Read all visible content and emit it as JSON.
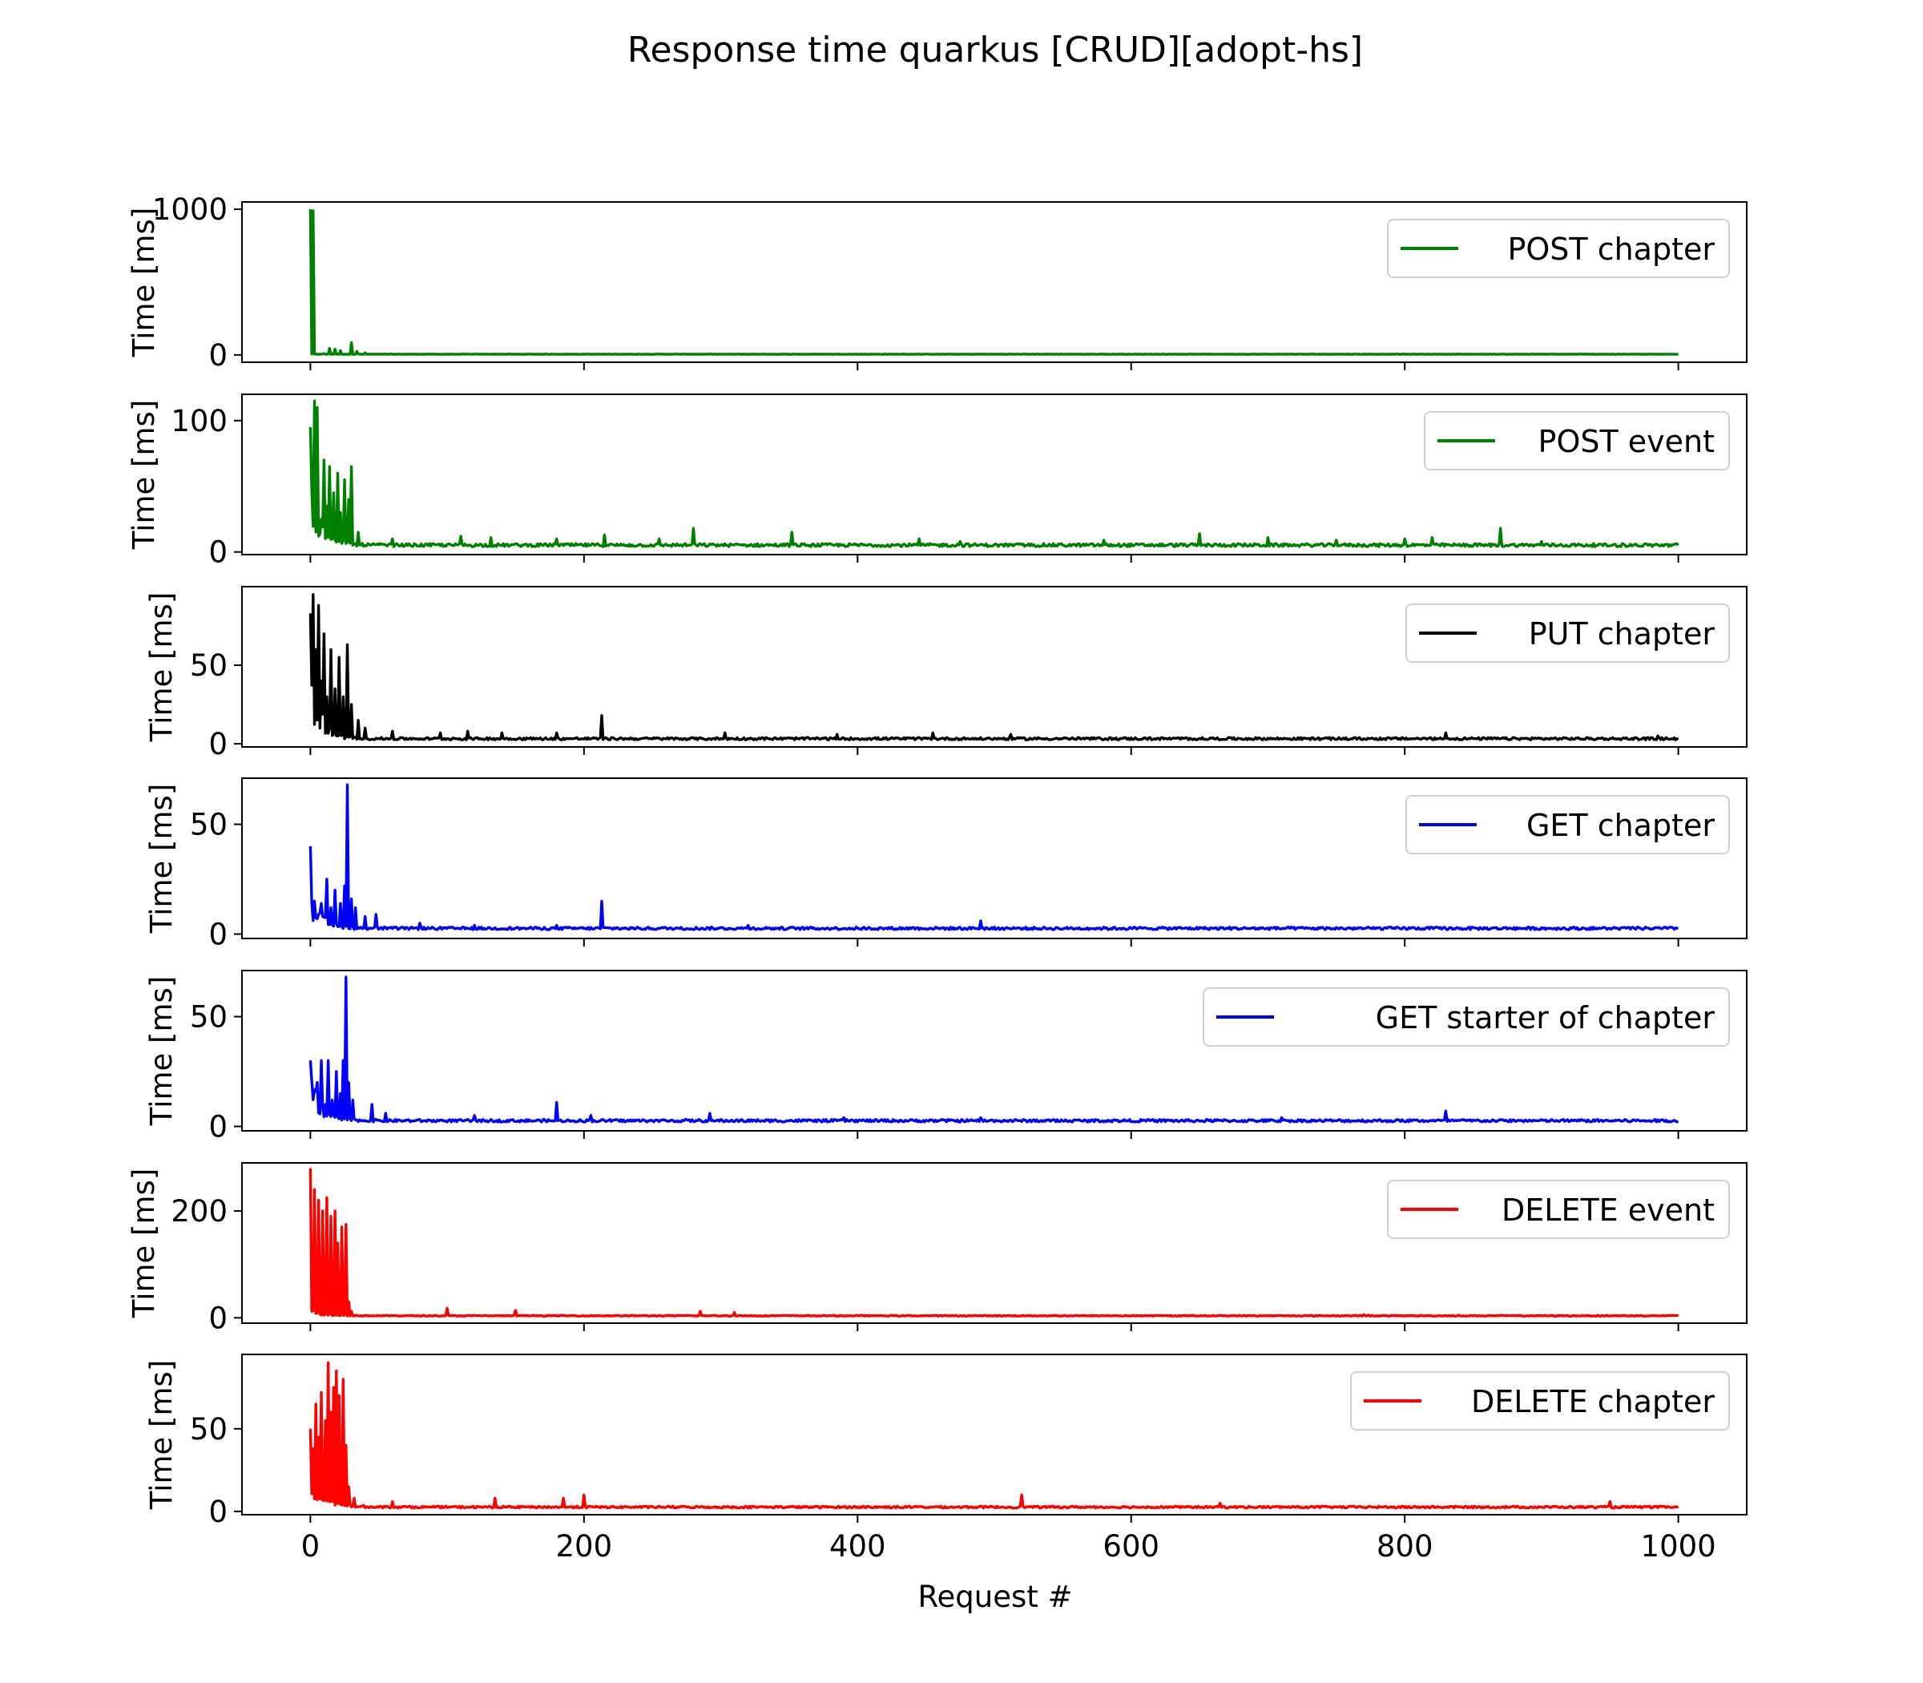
{
  "chart_data": {
    "type": "line",
    "title": "Response time quarkus [CRUD][adopt-hs]",
    "xlabel": "Request #",
    "xlim": [
      -50,
      1050
    ],
    "xticks": [
      0,
      200,
      400,
      600,
      800,
      1000
    ],
    "ylabel": "Time [ms]",
    "legend_position": "upper right",
    "grid": false,
    "panels": [
      {
        "series_name": "POST chapter",
        "color": "#008000",
        "ylim": [
          -50,
          1050
        ],
        "yticks": [
          0,
          1000
        ],
        "baseline": 4,
        "decay": [
          1000,
          0
        ],
        "spikes": [
          [
            0,
            1000
          ],
          [
            2,
            990
          ],
          [
            10,
            10
          ],
          [
            14,
            45
          ],
          [
            18,
            40
          ],
          [
            22,
            30
          ],
          [
            30,
            85
          ],
          [
            34,
            25
          ],
          [
            40,
            15
          ]
        ]
      },
      {
        "series_name": "POST event",
        "color": "#008000",
        "ylim": [
          -2,
          120
        ],
        "yticks": [
          0,
          100
        ],
        "baseline": 4,
        "decay": [
          40,
          8
        ],
        "spikes": [
          [
            0,
            95
          ],
          [
            3,
            115
          ],
          [
            5,
            110
          ],
          [
            8,
            25
          ],
          [
            10,
            70
          ],
          [
            12,
            35
          ],
          [
            14,
            65
          ],
          [
            17,
            45
          ],
          [
            20,
            60
          ],
          [
            22,
            30
          ],
          [
            25,
            55
          ],
          [
            28,
            40
          ],
          [
            30,
            65
          ],
          [
            35,
            15
          ],
          [
            60,
            10
          ],
          [
            110,
            12
          ],
          [
            132,
            11
          ],
          [
            180,
            10
          ],
          [
            215,
            13
          ],
          [
            255,
            10
          ],
          [
            280,
            18
          ],
          [
            352,
            15
          ],
          [
            445,
            10
          ],
          [
            475,
            8
          ],
          [
            580,
            9
          ],
          [
            650,
            14
          ],
          [
            700,
            11
          ],
          [
            750,
            9
          ],
          [
            800,
            10
          ],
          [
            820,
            11
          ],
          [
            870,
            18
          ],
          [
            900,
            8
          ]
        ]
      },
      {
        "series_name": "PUT chapter",
        "color": "#000000",
        "ylim": [
          -2,
          100
        ],
        "yticks": [
          0,
          50
        ],
        "baseline": 2.5,
        "decay": [
          45,
          7
        ],
        "spikes": [
          [
            0,
            83
          ],
          [
            2,
            95
          ],
          [
            4,
            60
          ],
          [
            6,
            88
          ],
          [
            8,
            40
          ],
          [
            10,
            70
          ],
          [
            12,
            30
          ],
          [
            15,
            60
          ],
          [
            18,
            35
          ],
          [
            21,
            55
          ],
          [
            24,
            30
          ],
          [
            27,
            63
          ],
          [
            30,
            25
          ],
          [
            35,
            15
          ],
          [
            40,
            10
          ],
          [
            60,
            8
          ],
          [
            95,
            7
          ],
          [
            115,
            8
          ],
          [
            140,
            7
          ],
          [
            180,
            7
          ],
          [
            213,
            18
          ],
          [
            303,
            7
          ],
          [
            385,
            6
          ],
          [
            455,
            7
          ],
          [
            512,
            6
          ],
          [
            830,
            7
          ],
          [
            985,
            5
          ]
        ]
      },
      {
        "series_name": "GET chapter",
        "color": "#0000ff",
        "ylim": [
          -2,
          71
        ],
        "yticks": [
          0,
          50
        ],
        "baseline": 2,
        "decay": [
          15,
          8
        ],
        "spikes": [
          [
            0,
            40
          ],
          [
            3,
            15
          ],
          [
            8,
            14
          ],
          [
            12,
            25
          ],
          [
            15,
            12
          ],
          [
            18,
            20
          ],
          [
            22,
            14
          ],
          [
            25,
            22
          ],
          [
            27,
            68
          ],
          [
            30,
            16
          ],
          [
            33,
            12
          ],
          [
            40,
            8
          ],
          [
            48,
            9
          ],
          [
            80,
            5
          ],
          [
            120,
            4
          ],
          [
            180,
            4
          ],
          [
            213,
            15
          ],
          [
            320,
            4
          ],
          [
            440,
            3
          ],
          [
            490,
            6
          ],
          [
            650,
            3
          ],
          [
            800,
            3
          ],
          [
            880,
            3
          ]
        ]
      },
      {
        "series_name": "GET starter of chapter",
        "color": "#0000ff",
        "ylim": [
          -2,
          71
        ],
        "yticks": [
          0,
          50
        ],
        "baseline": 2,
        "decay": [
          18,
          8
        ],
        "spikes": [
          [
            0,
            30
          ],
          [
            5,
            20
          ],
          [
            8,
            30
          ],
          [
            11,
            10
          ],
          [
            13,
            30
          ],
          [
            16,
            12
          ],
          [
            19,
            25
          ],
          [
            22,
            15
          ],
          [
            24,
            30
          ],
          [
            26,
            68
          ],
          [
            28,
            20
          ],
          [
            31,
            12
          ],
          [
            45,
            10
          ],
          [
            55,
            6
          ],
          [
            120,
            5
          ],
          [
            180,
            11
          ],
          [
            205,
            5
          ],
          [
            292,
            6
          ],
          [
            390,
            4
          ],
          [
            490,
            4
          ],
          [
            710,
            4
          ],
          [
            830,
            7
          ]
        ]
      },
      {
        "series_name": "DELETE event",
        "color": "#ff0000",
        "ylim": [
          -10,
          290
        ],
        "yticks": [
          0,
          200
        ],
        "baseline": 3,
        "decay": [
          10,
          10
        ],
        "spikes": [
          [
            0,
            280
          ],
          [
            3,
            240
          ],
          [
            6,
            220
          ],
          [
            9,
            200
          ],
          [
            12,
            225
          ],
          [
            15,
            190
          ],
          [
            18,
            200
          ],
          [
            20,
            140
          ],
          [
            23,
            170
          ],
          [
            26,
            175
          ],
          [
            28,
            30
          ],
          [
            30,
            12
          ],
          [
            100,
            18
          ],
          [
            150,
            14
          ],
          [
            285,
            12
          ],
          [
            310,
            10
          ],
          [
            770,
            6
          ]
        ]
      },
      {
        "series_name": "DELETE chapter",
        "color": "#ff0000",
        "ylim": [
          -2,
          95
        ],
        "yticks": [
          0,
          50
        ],
        "baseline": 2,
        "decay": [
          10,
          12
        ],
        "spikes": [
          [
            0,
            50
          ],
          [
            2,
            38
          ],
          [
            4,
            65
          ],
          [
            6,
            45
          ],
          [
            8,
            72
          ],
          [
            11,
            55
          ],
          [
            13,
            90
          ],
          [
            15,
            60
          ],
          [
            17,
            75
          ],
          [
            19,
            85
          ],
          [
            21,
            70
          ],
          [
            24,
            80
          ],
          [
            26,
            40
          ],
          [
            28,
            15
          ],
          [
            32,
            8
          ],
          [
            60,
            6
          ],
          [
            135,
            8
          ],
          [
            185,
            8
          ],
          [
            200,
            10
          ],
          [
            520,
            10
          ],
          [
            665,
            5
          ],
          [
            950,
            6
          ]
        ]
      }
    ]
  }
}
